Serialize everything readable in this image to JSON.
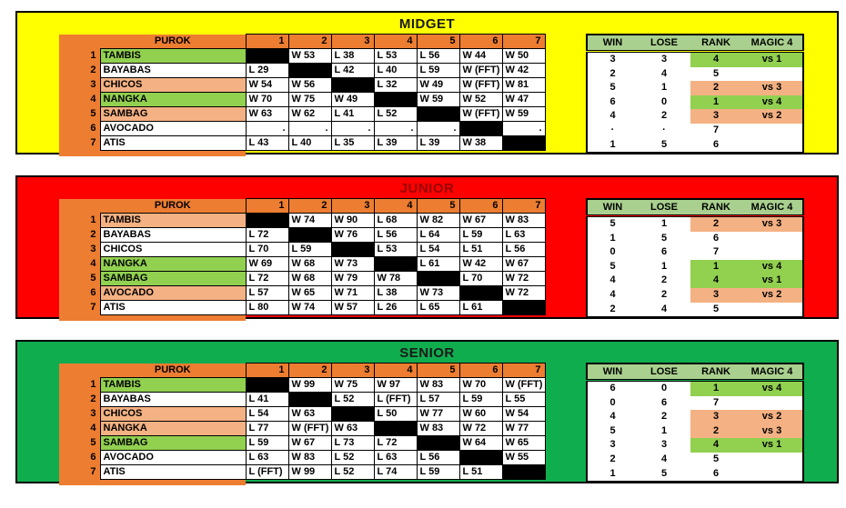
{
  "board_title": "purok-standings-board",
  "colors": {
    "highlight_green": "#92D050",
    "highlight_salmon": "#F4B183",
    "header_orange": "#ED7D31",
    "summary_header_green": "#A9D08E",
    "diagonal_black": "#000000",
    "midget_panel": "#FFFF00",
    "junior_panel": "#FF0000",
    "senior_panel": "#10AD4F"
  },
  "sections": [
    {
      "title": "MIDGET",
      "panel_color": "#FFFF00",
      "title_color": "#1a1a1a",
      "purok_label": "PUROK",
      "round_headers": [
        "1",
        "2",
        "3",
        "4",
        "5",
        "6",
        "7"
      ],
      "summary_headers": [
        "WIN",
        "LOSE",
        "RANK",
        "MAGIC 4"
      ],
      "teams": [
        {
          "num": "1",
          "name": "TAMBIS",
          "color": "green",
          "results": [
            null,
            "W 53",
            "L 38",
            "L 53",
            "L 56",
            "W 44",
            "W 50"
          ],
          "win": "3",
          "lose": "3",
          "rank": "4",
          "magic4": "vs 1"
        },
        {
          "num": "2",
          "name": "BAYABAS",
          "color": "none",
          "results": [
            "L 29",
            null,
            "L 42",
            "L 40",
            "L 59",
            "W (FFT)",
            "W 42"
          ],
          "win": "2",
          "lose": "4",
          "rank": "5",
          "magic4": ""
        },
        {
          "num": "3",
          "name": "CHICOS",
          "color": "salmon",
          "results": [
            "W 54",
            "W 56",
            null,
            "L 32",
            "W 49",
            "W (FFT)",
            "W 81"
          ],
          "win": "5",
          "lose": "1",
          "rank": "2",
          "magic4": "vs 3"
        },
        {
          "num": "4",
          "name": "NANGKA",
          "color": "green",
          "results": [
            "W 70",
            "W 75",
            "W 49",
            null,
            "W 59",
            "W 52",
            "W 47"
          ],
          "win": "6",
          "lose": "0",
          "rank": "1",
          "magic4": "vs 4"
        },
        {
          "num": "5",
          "name": "SAMBAG",
          "color": "salmon",
          "results": [
            "W 63",
            "W 62",
            "L 41",
            "L 52",
            null,
            "W (FFT)",
            "W 59"
          ],
          "win": "4",
          "lose": "2",
          "rank": "3",
          "magic4": "vs 2"
        },
        {
          "num": "6",
          "name": "AVOCADO",
          "color": "none",
          "results": [
            ".",
            ".",
            ".",
            ".",
            ".",
            null,
            "."
          ],
          "win": "·",
          "lose": "·",
          "rank": "7",
          "magic4": ""
        },
        {
          "num": "7",
          "name": "ATIS",
          "color": "none",
          "results": [
            "L 43",
            "L 40",
            "L 35",
            "L 39",
            "L 39",
            "W 38",
            null
          ],
          "win": "1",
          "lose": "5",
          "rank": "6",
          "magic4": ""
        }
      ]
    },
    {
      "title": "JUNIOR",
      "panel_color": "#FF0000",
      "title_color": "#990000",
      "purok_label": "PUROK",
      "round_headers": [
        "1",
        "2",
        "3",
        "4",
        "5",
        "6",
        "7"
      ],
      "summary_headers": [
        "WIN",
        "LOSE",
        "RANK",
        "MAGIC 4"
      ],
      "teams": [
        {
          "num": "1",
          "name": "TAMBIS",
          "color": "salmon",
          "results": [
            null,
            "W 74",
            "W 90",
            "L 68",
            "W 82",
            "W 67",
            "W 83"
          ],
          "win": "5",
          "lose": "1",
          "rank": "2",
          "magic4": "vs 3"
        },
        {
          "num": "2",
          "name": "BAYABAS",
          "color": "none",
          "results": [
            "L 72",
            null,
            "W 76",
            "L 56",
            "L 64",
            "L 59",
            "L 63"
          ],
          "win": "1",
          "lose": "5",
          "rank": "6",
          "magic4": ""
        },
        {
          "num": "3",
          "name": "CHICOS",
          "color": "none",
          "results": [
            "L 70",
            "L 59",
            null,
            "L 53",
            "L 54",
            "L 51",
            "L 56"
          ],
          "win": "0",
          "lose": "6",
          "rank": "7",
          "magic4": ""
        },
        {
          "num": "4",
          "name": "NANGKA",
          "color": "green",
          "results": [
            "W 69",
            "W 68",
            "W 73",
            null,
            "L 61",
            "W 42",
            "W 67"
          ],
          "win": "5",
          "lose": "1",
          "rank": "1",
          "magic4": "vs 4"
        },
        {
          "num": "5",
          "name": "SAMBAG",
          "color": "green",
          "results": [
            "L 72",
            "W 68",
            "W 79",
            "W 78",
            null,
            "L 70",
            "W 72"
          ],
          "win": "4",
          "lose": "2",
          "rank": "4",
          "magic4": "vs 1"
        },
        {
          "num": "6",
          "name": "AVOCADO",
          "color": "salmon",
          "results": [
            "L 57",
            "W 65",
            "W 71",
            "L 38",
            "W 73",
            null,
            "W 72"
          ],
          "win": "4",
          "lose": "2",
          "rank": "3",
          "magic4": "vs 2"
        },
        {
          "num": "7",
          "name": "ATIS",
          "color": "none",
          "results": [
            "L 80",
            "W 74",
            "W 57",
            "L 26",
            "L 65",
            "L 61",
            null
          ],
          "win": "2",
          "lose": "4",
          "rank": "5",
          "magic4": ""
        }
      ]
    },
    {
      "title": "SENIOR",
      "panel_color": "#10AD4F",
      "title_color": "#1a1a1a",
      "purok_label": "PUROK",
      "round_headers": [
        "1",
        "2",
        "3",
        "4",
        "5",
        "6",
        "7"
      ],
      "summary_headers": [
        "WIN",
        "LOSE",
        "RANK",
        "MAGIC 4"
      ],
      "teams": [
        {
          "num": "1",
          "name": "TAMBIS",
          "color": "green",
          "results": [
            null,
            "W 99",
            "W 75",
            "W 97",
            "W 83",
            "W 70",
            "W (FFT)"
          ],
          "win": "6",
          "lose": "0",
          "rank": "1",
          "magic4": "vs 4"
        },
        {
          "num": "2",
          "name": "BAYABAS",
          "color": "none",
          "results": [
            "L 41",
            null,
            "L 52",
            "L (FFT)",
            "L 57",
            "L 59",
            "L 55"
          ],
          "win": "0",
          "lose": "6",
          "rank": "7",
          "magic4": ""
        },
        {
          "num": "3",
          "name": "CHICOS",
          "color": "salmon",
          "results": [
            "L 54",
            "W 63",
            null,
            "L 50",
            "W 77",
            "W 60",
            "W 54"
          ],
          "win": "4",
          "lose": "2",
          "rank": "3",
          "magic4": "vs 2"
        },
        {
          "num": "4",
          "name": "NANGKA",
          "color": "salmon",
          "results": [
            "L 77",
            "W (FFT)",
            "W 63",
            null,
            "W 83",
            "W 72",
            "W 77"
          ],
          "win": "5",
          "lose": "1",
          "rank": "2",
          "magic4": "vs 3"
        },
        {
          "num": "5",
          "name": "SAMBAG",
          "color": "green",
          "results": [
            "L 59",
            "W 67",
            "L 73",
            "L 72",
            null,
            "W 64",
            "W 65"
          ],
          "win": "3",
          "lose": "3",
          "rank": "4",
          "magic4": "vs 1"
        },
        {
          "num": "6",
          "name": "AVOCADO",
          "color": "none",
          "results": [
            "L 63",
            "W 83",
            "L 52",
            "L 63",
            "L 56",
            null,
            "W 55"
          ],
          "win": "2",
          "lose": "4",
          "rank": "5",
          "magic4": ""
        },
        {
          "num": "7",
          "name": "ATIS",
          "color": "none",
          "results": [
            "L (FFT)",
            "W 99",
            "L 52",
            "L 74",
            "L 59",
            "L 51",
            null
          ],
          "win": "1",
          "lose": "5",
          "rank": "6",
          "magic4": ""
        }
      ]
    }
  ]
}
